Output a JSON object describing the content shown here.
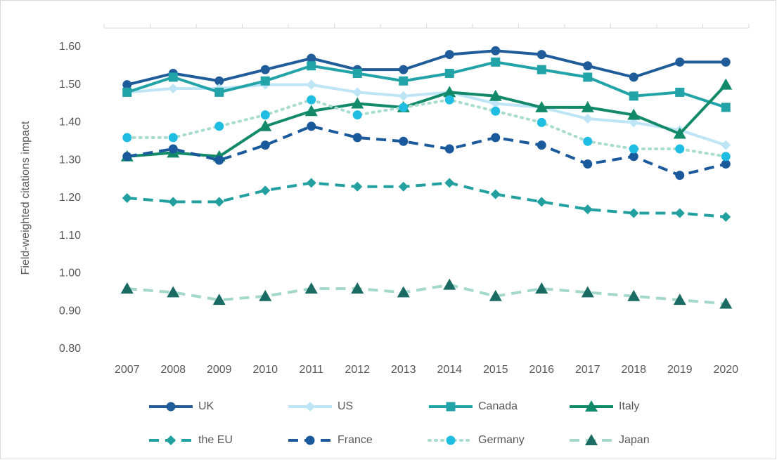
{
  "chart_data": {
    "type": "line",
    "y_label": "Field-weighted citations impact",
    "categories": [
      "2007",
      "2008",
      "2009",
      "2010",
      "2011",
      "2012",
      "2013",
      "2014",
      "2015",
      "2016",
      "2017",
      "2018",
      "2019",
      "2020"
    ],
    "ylim": [
      0.8,
      1.65
    ],
    "yticks": [
      {
        "value": 0.8,
        "label": "0.80"
      },
      {
        "value": 0.9,
        "label": "0.90"
      },
      {
        "value": 1.0,
        "label": "1.00"
      },
      {
        "value": 1.1,
        "label": "1.10"
      },
      {
        "value": 1.2,
        "label": "1.20"
      },
      {
        "value": 1.3,
        "label": "1.30"
      },
      {
        "value": 1.4,
        "label": "1.40"
      },
      {
        "value": 1.5,
        "label": "1.50"
      },
      {
        "value": 1.6,
        "label": "1.60"
      }
    ],
    "grid": false,
    "legend": "bottom",
    "series": [
      {
        "name": "UK",
        "color": "#1f5c99",
        "marker": "circle",
        "line_style": "solid",
        "values": [
          1.5,
          1.53,
          1.51,
          1.54,
          1.57,
          1.54,
          1.54,
          1.58,
          1.59,
          1.58,
          1.55,
          1.52,
          1.56,
          1.56
        ]
      },
      {
        "name": "US",
        "color": "#bde5f5",
        "marker": "diamond",
        "line_style": "solid",
        "values": [
          1.48,
          1.49,
          1.49,
          1.5,
          1.5,
          1.48,
          1.47,
          1.48,
          1.45,
          1.44,
          1.41,
          1.4,
          1.38,
          1.34
        ]
      },
      {
        "name": "Canada",
        "color": "#22a3a8",
        "marker": "square",
        "line_style": "solid",
        "values": [
          1.48,
          1.52,
          1.48,
          1.51,
          1.55,
          1.53,
          1.51,
          1.53,
          1.56,
          1.54,
          1.52,
          1.47,
          1.48,
          1.44
        ]
      },
      {
        "name": "Italy",
        "color": "#128a6a",
        "marker": "triangle",
        "line_style": "solid",
        "values": [
          1.31,
          1.32,
          1.31,
          1.39,
          1.43,
          1.45,
          1.44,
          1.48,
          1.47,
          1.44,
          1.44,
          1.42,
          1.37,
          1.5
        ]
      },
      {
        "name": "the EU",
        "color": "#22a0a0",
        "marker": "diamond",
        "line_style": "dashed",
        "values": [
          1.2,
          1.19,
          1.19,
          1.22,
          1.24,
          1.23,
          1.23,
          1.24,
          1.21,
          1.19,
          1.17,
          1.16,
          1.16,
          1.15
        ]
      },
      {
        "name": "France",
        "color": "#1a5a9c",
        "marker": "circle",
        "line_style": "dashed",
        "values": [
          1.31,
          1.33,
          1.3,
          1.34,
          1.39,
          1.36,
          1.35,
          1.33,
          1.36,
          1.34,
          1.29,
          1.31,
          1.26,
          1.29
        ]
      },
      {
        "name": "Germany",
        "color": "#a7dccf",
        "marker_color": "#1fbde2",
        "marker": "circle",
        "line_style": "dotted",
        "values": [
          1.36,
          1.36,
          1.39,
          1.42,
          1.46,
          1.42,
          1.44,
          1.46,
          1.43,
          1.4,
          1.35,
          1.33,
          1.33,
          1.31
        ]
      },
      {
        "name": "Japan",
        "color": "#a3d8cb",
        "marker_color": "#1a6b64",
        "marker": "triangle",
        "line_style": "dashed",
        "values": [
          0.96,
          0.95,
          0.93,
          0.94,
          0.96,
          0.96,
          0.95,
          0.97,
          0.94,
          0.96,
          0.95,
          0.94,
          0.93,
          0.92
        ]
      }
    ]
  }
}
